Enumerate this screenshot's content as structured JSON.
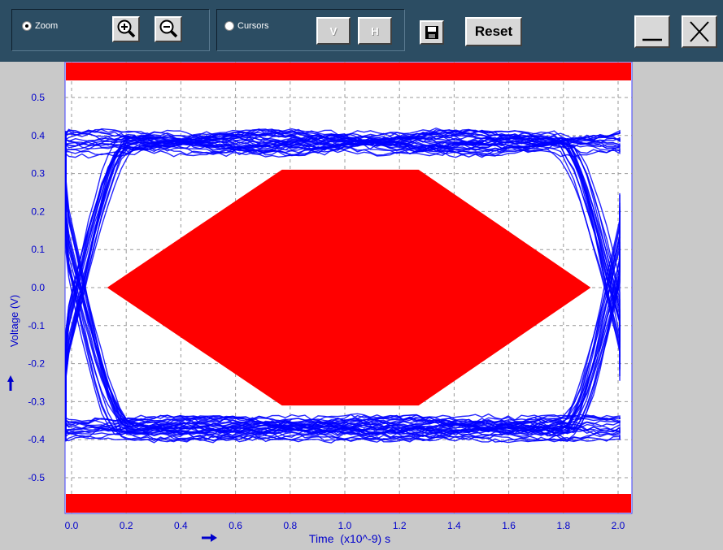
{
  "toolbar": {
    "zoom_label": "Zoom",
    "cursors_label": "Cursors",
    "v_label": "V",
    "h_label": "H",
    "reset_label": "Reset",
    "zoom_checked": true,
    "cursors_checked": false,
    "icons": [
      "zoom-in-icon",
      "zoom-out-icon",
      "save-icon",
      "minimize-icon",
      "close-icon"
    ]
  },
  "colors": {
    "toolbar_bg": "#2c4d63",
    "trace": "#0000ff",
    "mask": "#ff0000",
    "axis_text": "#0000cc",
    "grid": "#999999"
  },
  "chart_data": {
    "type": "eye-diagram",
    "xlabel": "Time  (x10^-9) s",
    "ylabel": "Voltage (V)",
    "xlim": [
      0.0,
      2.0
    ],
    "ylim": [
      -0.55,
      0.55
    ],
    "x_ticks": [
      "0.0",
      "0.2",
      "0.4",
      "0.6",
      "0.8",
      "1.0",
      "1.2",
      "1.4",
      "1.6",
      "1.8",
      "2.0"
    ],
    "y_ticks": [
      "0.5",
      "0.4",
      "0.3",
      "0.2",
      "0.1",
      "0.0",
      "-0.1",
      "-0.2",
      "-0.3",
      "-0.4",
      "-0.5"
    ],
    "grid": true,
    "signal": {
      "high_level": 0.38,
      "low_level": -0.37,
      "crossings": [
        0.03,
        1.98
      ]
    },
    "mask": {
      "polygon": [
        [
          0.13,
          0.0
        ],
        [
          0.77,
          0.31
        ],
        [
          1.27,
          0.31
        ],
        [
          1.9,
          0.0
        ],
        [
          1.27,
          -0.31
        ],
        [
          0.77,
          -0.31
        ]
      ],
      "top_band": [
        0.54,
        0.59
      ],
      "bottom_band": [
        -0.59,
        -0.54
      ]
    }
  }
}
